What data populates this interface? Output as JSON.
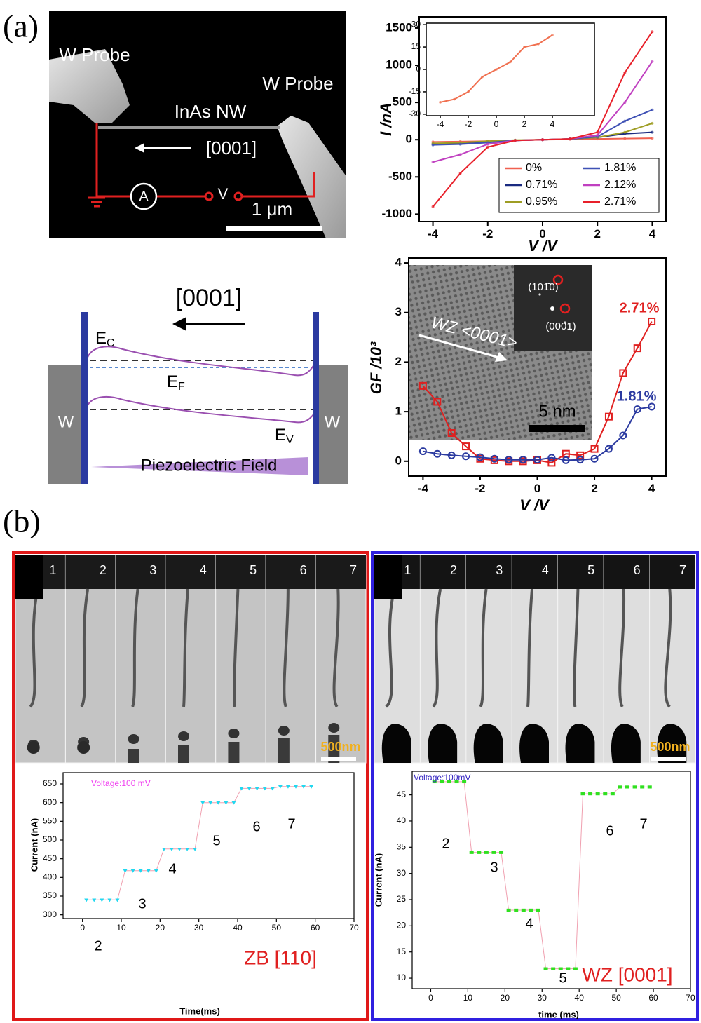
{
  "panels": [
    "(a)",
    "(b)"
  ],
  "sem_image": {
    "left_probe": "W Probe",
    "right_probe": "W Probe",
    "wire": "InAs NW",
    "direction": "[0001]",
    "ammeter": "A",
    "voltage": "V",
    "scale": "1 μm"
  },
  "band_diagram": {
    "direction": "[0001]",
    "ec": {
      "main": "E",
      "sub": "C"
    },
    "ef": {
      "main": "E",
      "sub": "F"
    },
    "ev": {
      "main": "E",
      "sub": "V"
    },
    "left_metal": "W",
    "right_metal": "W",
    "field": "Piezoelectric Field"
  },
  "tem_inset": {
    "direction": "WZ <0001>",
    "spot1": "(101̄0)",
    "spot2": "(0001)",
    "scale": "5 nm"
  },
  "strips": [
    {
      "frames": [
        "1",
        "2",
        "3",
        "4",
        "5",
        "6",
        "7"
      ],
      "scale": "500nm"
    },
    {
      "frames": [
        "1",
        "2",
        "3",
        "4",
        "5",
        "6",
        "7"
      ],
      "scale": "500nm"
    }
  ],
  "chart_data": [
    {
      "type": "line",
      "xlabel": "V /V",
      "ylabel": "I /nA",
      "x": [
        -4,
        -3,
        -2,
        -1,
        0,
        1,
        2,
        3,
        4
      ],
      "xlim": [
        -4.5,
        4.5
      ],
      "ylim": [
        -1100,
        1650
      ],
      "xticks": [
        -4,
        -2,
        0,
        2,
        4
      ],
      "yticks": [
        -1000,
        -500,
        0,
        500,
        1000,
        1500
      ],
      "legend": "lower right",
      "series": [
        {
          "name": "0%",
          "color": "#f06050",
          "values": [
            -30,
            -25,
            -20,
            -10,
            0,
            5,
            10,
            15,
            20
          ]
        },
        {
          "name": "0.71%",
          "color": "#1a2a80",
          "values": [
            -60,
            -50,
            -30,
            -10,
            0,
            10,
            30,
            80,
            100
          ]
        },
        {
          "name": "0.95%",
          "color": "#9e9d24",
          "values": [
            -50,
            -40,
            -20,
            -5,
            0,
            10,
            30,
            100,
            220
          ]
        },
        {
          "name": "1.81%",
          "color": "#3f51b5",
          "values": [
            -70,
            -60,
            -40,
            -10,
            0,
            10,
            40,
            250,
            400
          ]
        },
        {
          "name": "2.12%",
          "color": "#c040c0",
          "values": [
            -300,
            -200,
            -60,
            -10,
            0,
            10,
            60,
            500,
            1050
          ]
        },
        {
          "name": "2.71%",
          "color": "#e8202a",
          "values": [
            -900,
            -450,
            -100,
            -10,
            0,
            10,
            100,
            900,
            1450
          ]
        }
      ]
    },
    {
      "type": "line",
      "x": [
        -4,
        -3,
        -2,
        -1,
        0,
        1,
        2,
        3,
        4
      ],
      "values": [
        -22,
        -20,
        -15,
        -5,
        0,
        5,
        15,
        17,
        23
      ],
      "color": "#f07050",
      "xlim": [
        -5,
        7
      ],
      "ylim": [
        -31,
        31
      ],
      "xticks": [
        -4,
        -2,
        0,
        2,
        4
      ],
      "yticks": [
        -30,
        -15,
        0,
        15,
        30
      ]
    },
    {
      "type": "line",
      "xlabel": "V /V",
      "ylabel": "GF /10³",
      "x": [
        -4,
        -3.5,
        -3,
        -2.5,
        -2,
        -1.5,
        -1,
        -0.5,
        0,
        0.5,
        1,
        1.5,
        2,
        2.5,
        3,
        3.5,
        4
      ],
      "xlim": [
        -4.5,
        4.5
      ],
      "ylim": [
        -0.3,
        4.1
      ],
      "xticks": [
        -4,
        -2,
        0,
        2,
        4
      ],
      "yticks": [
        0,
        1,
        2,
        3,
        4
      ],
      "series": [
        {
          "name": "2.71%",
          "color": "#e02020",
          "marker": "square",
          "values": [
            1.52,
            1.2,
            0.57,
            0.3,
            0.05,
            0.02,
            0.0,
            0.0,
            0.02,
            -0.03,
            0.15,
            0.12,
            0.25,
            0.9,
            1.78,
            2.28,
            2.82
          ]
        },
        {
          "name": "1.81%",
          "color": "#2b3aa0",
          "marker": "circle",
          "values": [
            0.2,
            0.15,
            0.12,
            0.1,
            0.08,
            0.05,
            0.03,
            0.03,
            0.03,
            0.07,
            0.02,
            0.03,
            0.05,
            0.25,
            0.52,
            1.05,
            1.1
          ]
        }
      ]
    },
    {
      "type": "line",
      "xlabel": "Time(ms)",
      "ylabel": "Current (nA)",
      "annotation": "Voltage:100 mV",
      "label": "ZB [110]",
      "step_labels": [
        "2",
        "3",
        "4",
        "5",
        "6",
        "7"
      ],
      "x": [
        1,
        3,
        5,
        7,
        9,
        11,
        13,
        15,
        17,
        19,
        21,
        23,
        25,
        27,
        29,
        31,
        33,
        35,
        37,
        39,
        41,
        43,
        45,
        47,
        49,
        51,
        53,
        55,
        57,
        59
      ],
      "xlim": [
        -5,
        70
      ],
      "ylim": [
        290,
        680
      ],
      "xticks": [
        0,
        10,
        20,
        30,
        40,
        50,
        60,
        70
      ],
      "yticks": [
        300,
        350,
        400,
        450,
        500,
        550,
        600,
        650
      ],
      "series": [
        {
          "color": "#20d8f0",
          "line_color": "#f0a0b0",
          "marker": "triangle",
          "values": [
            340,
            340,
            340,
            340,
            340,
            418,
            418,
            418,
            418,
            418,
            476,
            476,
            476,
            476,
            476,
            600,
            600,
            600,
            600,
            600,
            638,
            638,
            638,
            638,
            638,
            643,
            643,
            643,
            643,
            643
          ]
        }
      ]
    },
    {
      "type": "line",
      "xlabel": "time (ms)",
      "ylabel": "Current (nA)",
      "annotation": "Voltage:100mV",
      "label": "WZ [0001]",
      "step_labels": [
        "2",
        "3",
        "4",
        "5",
        "6",
        "7"
      ],
      "x": [
        1,
        3,
        5,
        7,
        9,
        11,
        13,
        15,
        17,
        19,
        21,
        23,
        25,
        27,
        29,
        31,
        33,
        35,
        37,
        39,
        41,
        43,
        45,
        47,
        49,
        51,
        53,
        55,
        57,
        59
      ],
      "xlim": [
        -5,
        70
      ],
      "ylim": [
        8,
        49.5
      ],
      "xticks": [
        0,
        10,
        20,
        30,
        40,
        50,
        60,
        70
      ],
      "yticks": [
        10,
        15,
        20,
        25,
        30,
        35,
        40,
        45
      ],
      "series": [
        {
          "color": "#30e020",
          "line_color": "#f0a0b0",
          "marker": "square-filled",
          "values": [
            47.5,
            47.5,
            47.5,
            47.5,
            47.5,
            34,
            34,
            34,
            34,
            34,
            23,
            23,
            23,
            23,
            23,
            11.8,
            11.8,
            11.8,
            11.8,
            11.8,
            45.2,
            45.2,
            45.2,
            45.2,
            45.2,
            46.5,
            46.5,
            46.5,
            46.5,
            46.5
          ]
        }
      ]
    }
  ]
}
